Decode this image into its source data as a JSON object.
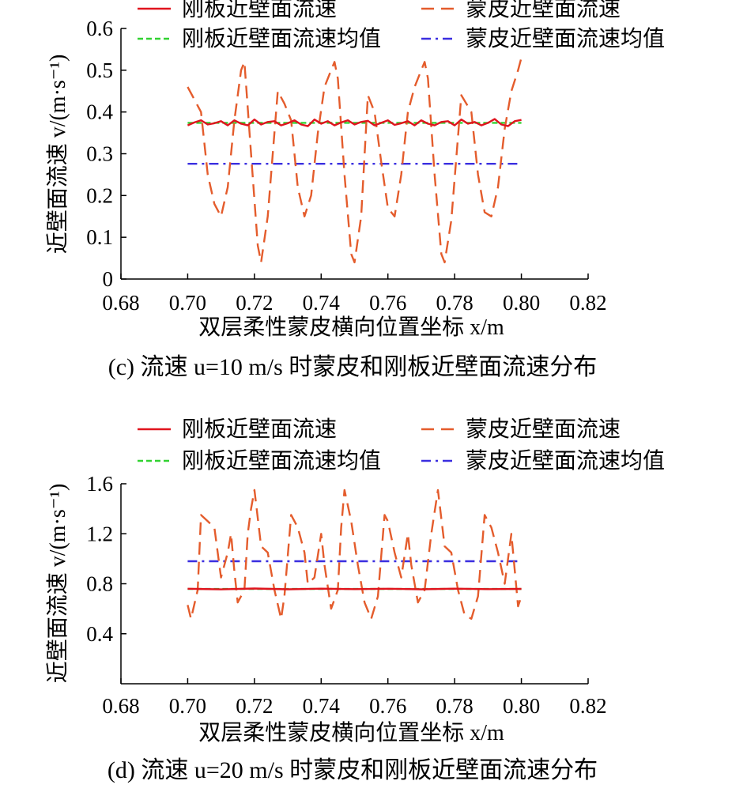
{
  "chart_data": [
    {
      "type": "line",
      "panel_caption": "(c) 流速 u=10 m/s 时蒙皮和刚板近壁面流速分布",
      "xlabel": "双层柔性蒙皮横向位置坐标 x/m",
      "ylabel": "近壁面流速 v/(m·s⁻¹)",
      "xlim": [
        0.68,
        0.82
      ],
      "ylim": [
        0,
        0.6
      ],
      "xticks": [
        "0.68",
        "0.70",
        "0.72",
        "0.74",
        "0.76",
        "0.78",
        "0.80",
        "0.82"
      ],
      "yticks": [
        "0",
        "0.1",
        "0.2",
        "0.3",
        "0.4",
        "0.5",
        "0.6"
      ],
      "legend_position": "top",
      "series": [
        {
          "name": "刚板近壁面流速",
          "color": "#e0141e",
          "style": "solid",
          "x": [
            0.7,
            0.702,
            0.704,
            0.706,
            0.708,
            0.71,
            0.712,
            0.714,
            0.716,
            0.718,
            0.72,
            0.722,
            0.724,
            0.726,
            0.728,
            0.73,
            0.732,
            0.734,
            0.736,
            0.738,
            0.74,
            0.742,
            0.744,
            0.746,
            0.748,
            0.75,
            0.752,
            0.754,
            0.756,
            0.758,
            0.76,
            0.762,
            0.764,
            0.766,
            0.768,
            0.77,
            0.772,
            0.774,
            0.776,
            0.778,
            0.78,
            0.782,
            0.784,
            0.786,
            0.788,
            0.79,
            0.792,
            0.794,
            0.796,
            0.798,
            0.8
          ],
          "values": [
            0.368,
            0.375,
            0.38,
            0.37,
            0.373,
            0.378,
            0.368,
            0.38,
            0.372,
            0.368,
            0.382,
            0.37,
            0.376,
            0.378,
            0.368,
            0.373,
            0.38,
            0.37,
            0.366,
            0.382,
            0.372,
            0.378,
            0.368,
            0.375,
            0.38,
            0.37,
            0.376,
            0.379,
            0.368,
            0.374,
            0.38,
            0.369,
            0.373,
            0.378,
            0.368,
            0.38,
            0.372,
            0.368,
            0.376,
            0.378,
            0.368,
            0.382,
            0.372,
            0.376,
            0.368,
            0.374,
            0.383,
            0.37,
            0.366,
            0.378,
            0.381
          ]
        },
        {
          "name": "蒙皮近壁面流速",
          "color": "#e45c2c",
          "style": "dashed",
          "x": [
            0.7,
            0.704,
            0.706,
            0.708,
            0.71,
            0.712,
            0.714,
            0.716,
            0.717,
            0.719,
            0.721,
            0.722,
            0.724,
            0.727,
            0.729,
            0.731,
            0.733,
            0.735,
            0.737,
            0.739,
            0.741,
            0.743,
            0.744,
            0.745,
            0.747,
            0.749,
            0.75,
            0.752,
            0.754,
            0.756,
            0.758,
            0.76,
            0.762,
            0.764,
            0.766,
            0.768,
            0.77,
            0.771,
            0.772,
            0.774,
            0.776,
            0.777,
            0.779,
            0.782,
            0.785,
            0.787,
            0.789,
            0.791,
            0.793,
            0.795,
            0.797,
            0.799,
            0.8
          ],
          "values": [
            0.46,
            0.4,
            0.25,
            0.18,
            0.15,
            0.22,
            0.38,
            0.5,
            0.52,
            0.3,
            0.08,
            0.04,
            0.15,
            0.45,
            0.42,
            0.38,
            0.22,
            0.15,
            0.2,
            0.35,
            0.46,
            0.5,
            0.52,
            0.48,
            0.25,
            0.06,
            0.04,
            0.15,
            0.44,
            0.4,
            0.28,
            0.17,
            0.15,
            0.25,
            0.4,
            0.46,
            0.5,
            0.52,
            0.48,
            0.25,
            0.06,
            0.04,
            0.14,
            0.44,
            0.4,
            0.25,
            0.16,
            0.15,
            0.22,
            0.36,
            0.45,
            0.5,
            0.53
          ]
        },
        {
          "name": "刚板近壁面流速均值",
          "color": "#32d232",
          "style": "short-dashed",
          "x": [
            0.7,
            0.8
          ],
          "values": [
            0.374,
            0.374
          ]
        },
        {
          "name": "蒙皮近壁面流速均值",
          "color": "#3a2ee0",
          "style": "dash-dot",
          "x": [
            0.7,
            0.8
          ],
          "values": [
            0.276,
            0.276
          ]
        }
      ]
    },
    {
      "type": "line",
      "panel_caption": "(d) 流速 u=20 m/s 时蒙皮和刚板近壁面流速分布",
      "xlabel": "双层柔性蒙皮横向位置坐标 x/m",
      "ylabel": "近壁面流速 v/(m·s⁻¹)",
      "xlim": [
        0.68,
        0.82
      ],
      "ylim": [
        0,
        1.6
      ],
      "xticks": [
        "0.68",
        "0.70",
        "0.72",
        "0.74",
        "0.76",
        "0.78",
        "0.80",
        "0.82"
      ],
      "yticks": [
        "0.4",
        "0.8",
        "1.2",
        "1.6"
      ],
      "legend_position": "top",
      "series": [
        {
          "name": "刚板近壁面流速",
          "color": "#e0141e",
          "style": "solid",
          "x": [
            0.7,
            0.71,
            0.72,
            0.73,
            0.74,
            0.75,
            0.76,
            0.77,
            0.78,
            0.79,
            0.8
          ],
          "values": [
            0.76,
            0.755,
            0.762,
            0.756,
            0.761,
            0.757,
            0.76,
            0.756,
            0.761,
            0.757,
            0.759
          ]
        },
        {
          "name": "蒙皮近壁面流速",
          "color": "#e45c2c",
          "style": "dashed",
          "x": [
            0.7,
            0.701,
            0.703,
            0.704,
            0.706,
            0.708,
            0.71,
            0.712,
            0.713,
            0.714,
            0.715,
            0.717,
            0.718,
            0.719,
            0.72,
            0.722,
            0.724,
            0.726,
            0.728,
            0.729,
            0.731,
            0.733,
            0.735,
            0.736,
            0.738,
            0.74,
            0.741,
            0.743,
            0.745,
            0.746,
            0.747,
            0.749,
            0.751,
            0.753,
            0.755,
            0.757,
            0.759,
            0.76,
            0.762,
            0.764,
            0.766,
            0.767,
            0.769,
            0.771,
            0.773,
            0.775,
            0.777,
            0.779,
            0.781,
            0.783,
            0.785,
            0.787,
            0.789,
            0.791,
            0.793,
            0.795,
            0.797,
            0.799,
            0.8
          ],
          "values": [
            0.63,
            0.52,
            0.75,
            1.35,
            1.3,
            1.25,
            0.85,
            1.05,
            1.2,
            0.9,
            0.65,
            0.75,
            1.2,
            1.4,
            1.55,
            1.1,
            1.05,
            0.75,
            0.52,
            0.7,
            1.35,
            1.25,
            1.05,
            0.8,
            0.85,
            1.2,
            0.95,
            0.6,
            0.75,
            1.25,
            1.55,
            1.3,
            0.95,
            0.65,
            0.52,
            0.7,
            1.35,
            1.3,
            1.05,
            0.85,
            1.2,
            0.95,
            0.65,
            0.75,
            1.2,
            1.55,
            1.1,
            1.05,
            0.75,
            0.55,
            0.52,
            0.7,
            1.35,
            1.25,
            1.05,
            0.8,
            1.2,
            0.62,
            0.7
          ]
        },
        {
          "name": "刚板近壁面流速均值",
          "color": "#32d232",
          "style": "short-dashed",
          "x": [
            0.7,
            0.8
          ],
          "values": [
            0.758,
            0.758
          ]
        },
        {
          "name": "蒙皮近壁面流速均值",
          "color": "#3a2ee0",
          "style": "dash-dot",
          "x": [
            0.7,
            0.8
          ],
          "values": [
            0.98,
            0.98
          ]
        }
      ]
    }
  ]
}
